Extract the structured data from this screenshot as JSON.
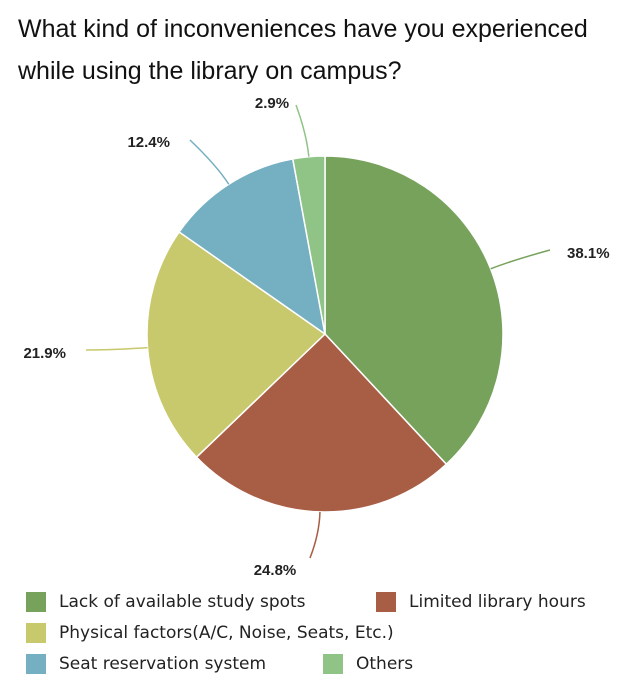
{
  "title_lines": [
    "What kind of inconveniences have you experienced",
    "while using the library on campus?"
  ],
  "chart_data": {
    "type": "pie",
    "title": "What kind of inconveniences have you experienced while using the library on campus?",
    "slices": [
      {
        "label": "Lack of available study spots",
        "value": 38.1,
        "display": "38.1%",
        "color": "#77a25c"
      },
      {
        "label": "Limited library hours",
        "value": 24.8,
        "display": "24.8%",
        "color": "#a85d45"
      },
      {
        "label": "Physical factors(A/C, Noise, Seats, Etc.)",
        "value": 21.9,
        "display": "21.9%",
        "color": "#c8c86c"
      },
      {
        "label": "Seat reservation system",
        "value": 12.4,
        "display": "12.4%",
        "color": "#74afc2"
      },
      {
        "label": "Others",
        "value": 2.9,
        "display": "2.9%",
        "color": "#8fc486"
      }
    ],
    "legend_placement": "bottom"
  },
  "legend": {
    "rows": [
      [
        {
          "label": "Lack of available study spots",
          "color": "#77a25c"
        },
        {
          "label": "Limited library hours",
          "color": "#a85d45"
        }
      ],
      [
        {
          "label": "Physical factors(A/C, Noise, Seats, Etc.)",
          "color": "#c8c86c"
        }
      ],
      [
        {
          "label": "Seat reservation system",
          "color": "#74afc2"
        },
        {
          "label": "Others",
          "color": "#8fc486"
        }
      ]
    ]
  }
}
